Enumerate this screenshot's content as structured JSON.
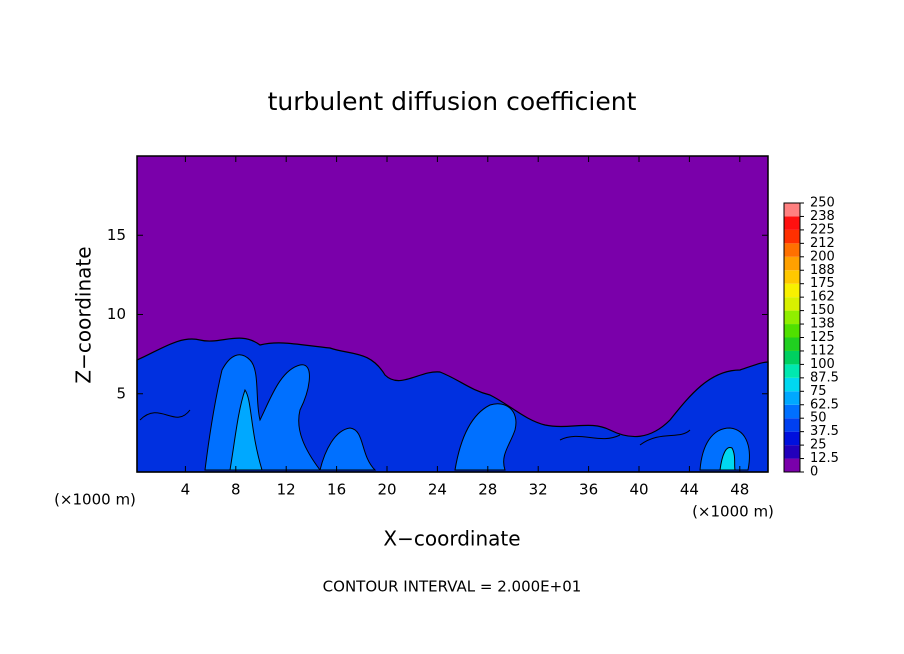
{
  "chart_data": {
    "type": "contour",
    "title": "turbulent diffusion coefficient",
    "x_label": "X−coordinate",
    "y_label": "Z−coordinate",
    "y_unit": "(×1000 m)",
    "x_unit": "(×1000 m)",
    "footnote": "CONTOUR INTERVAL = 2.000E+01",
    "xlim": [
      0,
      50
    ],
    "xticks": [
      4,
      8,
      12,
      16,
      20,
      24,
      28,
      32,
      36,
      40,
      44,
      48
    ],
    "ylim": [
      0,
      20
    ],
    "yticks": [
      5,
      10,
      15
    ],
    "colorbar": {
      "levels": [
        0,
        12.5,
        25,
        37.5,
        50,
        62.5,
        75,
        87.5,
        100,
        {
          "value": 112.5,
          "label": "112"
        },
        125,
        {
          "value": 137.5,
          "label": "138"
        },
        150,
        {
          "value": 162.5,
          "label": "162"
        },
        175,
        {
          "value": 187.5,
          "label": "188"
        },
        200,
        {
          "value": 212.5,
          "label": "212"
        },
        225,
        {
          "value": 237.5,
          "label": "238"
        },
        250
      ],
      "colors": [
        "#7a00aa",
        "#2200bb",
        "#0010dd",
        "#0040f0",
        "#0070ff",
        "#00a8ff",
        "#00d8f0",
        "#00e8b0",
        "#00d060",
        "#20d020",
        "#50e000",
        "#90ee00",
        "#d8f000",
        "#f8f000",
        "#ffc800",
        "#ffa000",
        "#ff7000",
        "#ff3000",
        "#ff1010",
        "#ff8080"
      ]
    }
  }
}
